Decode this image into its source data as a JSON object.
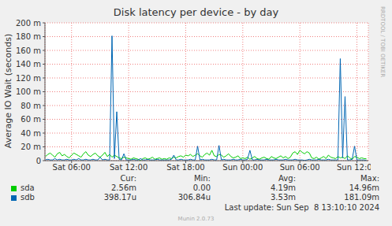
{
  "chart_data": {
    "type": "line",
    "title": "Disk latency per device - by day",
    "y_label": "Average IO Wait (seconds)",
    "side_text": "RRDTOOL / TOBI OETIKER",
    "footer": "Last update: Sun Sep  8 13:10:10 2024",
    "credit": "Munin 2.0.73",
    "stats_headers": [
      "Cur:",
      "Min:",
      "Avg:",
      "Max:"
    ],
    "grid": true,
    "xlim": [
      3.2,
      37.2
    ],
    "xticks": [
      {
        "value": 6,
        "label": "Sat 06:00"
      },
      {
        "value": 12,
        "label": "Sat 12:00"
      },
      {
        "value": 18,
        "label": "Sat 18:00"
      },
      {
        "value": 24,
        "label": "Sun 00:00"
      },
      {
        "value": 30,
        "label": "Sun 06:00"
      },
      {
        "value": 36,
        "label": "Sun 12:00"
      }
    ],
    "ylim": [
      0,
      0.2
    ],
    "yticks": [
      0,
      {
        "value": 0.02,
        "label": "20 m"
      },
      {
        "value": 0.04,
        "label": "40 m"
      },
      {
        "value": 0.06,
        "label": "60 m"
      },
      {
        "value": 0.08,
        "label": "80 m"
      },
      {
        "value": 0.1,
        "label": "100 m"
      },
      {
        "value": 0.12,
        "label": "120 m"
      },
      {
        "value": 0.14,
        "label": "140 m"
      },
      {
        "value": 0.16,
        "label": "160 m"
      },
      {
        "value": 0.18,
        "label": "180 m"
      },
      {
        "value": 0.2,
        "label": "200 m"
      }
    ],
    "x": [
      3.25,
      3.5,
      3.75,
      4,
      4.25,
      4.5,
      4.75,
      5,
      5.25,
      5.5,
      5.75,
      6,
      6.25,
      6.5,
      6.75,
      7,
      7.25,
      7.5,
      7.75,
      8,
      8.25,
      8.5,
      8.75,
      9,
      9.25,
      9.5,
      9.75,
      10,
      10.25,
      10.5,
      10.75,
      11,
      11.25,
      11.5,
      11.75,
      12,
      12.25,
      12.5,
      12.75,
      13,
      13.25,
      13.5,
      13.75,
      14,
      14.25,
      14.5,
      14.75,
      15,
      15.25,
      15.5,
      15.75,
      16,
      16.25,
      16.5,
      16.75,
      17,
      17.25,
      17.5,
      17.75,
      18,
      18.25,
      18.5,
      18.75,
      19,
      19.25,
      19.5,
      19.75,
      20,
      20.25,
      20.5,
      20.75,
      21,
      21.25,
      21.5,
      21.75,
      22,
      22.25,
      22.5,
      22.75,
      23,
      23.25,
      23.5,
      23.75,
      24,
      24.25,
      24.5,
      24.75,
      25,
      25.25,
      25.5,
      25.75,
      26,
      26.25,
      26.5,
      26.75,
      27,
      27.25,
      27.5,
      27.75,
      28,
      28.25,
      28.5,
      28.75,
      29,
      29.25,
      29.5,
      29.75,
      30,
      30.25,
      30.5,
      30.75,
      31,
      31.25,
      31.5,
      31.75,
      32,
      32.25,
      32.5,
      32.75,
      33,
      33.25,
      33.5,
      33.75,
      34,
      34.25,
      34.5,
      34.75,
      35,
      35.25,
      35.5,
      35.75,
      36,
      36.25,
      36.5,
      36.75,
      37
    ],
    "series": [
      {
        "name": "sda",
        "color": "#00cc00",
        "stats": [
          "2.56m",
          "0.00",
          "4.19m",
          "14.96m"
        ],
        "values": [
          0.006,
          0.009,
          0.011,
          0.008,
          0.005,
          0.01,
          0.012,
          0.007,
          0.009,
          0.006,
          0.004,
          0.008,
          0.011,
          0.009,
          0.007,
          0.005,
          0.01,
          0.013,
          0.008,
          0.006,
          0.009,
          0.011,
          0.007,
          0.005,
          0.008,
          0.012,
          0.006,
          0.009,
          0.005,
          0.008,
          0.006,
          0.004,
          0.003,
          0.005,
          0.004,
          0.003,
          0.002,
          0.004,
          0.003,
          0.002,
          0,
          0.003,
          0.004,
          0.002,
          0.003,
          0.005,
          0.002,
          0.003,
          0.004,
          0.002,
          0.003,
          0.002,
          0.004,
          0.003,
          0.005,
          0.004,
          0.006,
          0.007,
          0.005,
          0.008,
          0.007,
          0.009,
          0.006,
          0.008,
          0.01,
          0.007,
          0.005,
          0.009,
          0.011,
          0.008,
          0.015,
          0.007,
          0.006,
          0.009,
          0.008,
          0.005,
          0.007,
          0.01,
          0.006,
          0.004,
          0.005,
          0.007,
          0.003,
          0.004,
          0.003,
          0.005,
          0.002,
          0.004,
          0.006,
          0.003,
          0.002,
          0.004,
          0.005,
          0.003,
          0.002,
          0.006,
          0.004,
          0.003,
          0.005,
          0.007,
          0.004,
          0.006,
          0.003,
          0.005,
          0.011,
          0.013,
          0.009,
          0.01496,
          0.012,
          0.01,
          0.013,
          0.011,
          0.004,
          0.003,
          0.005,
          0.002,
          0.004,
          0.006,
          0.003,
          0.008,
          0.005,
          0.004,
          0.003,
          0.006,
          0.004,
          0.005,
          0.003,
          0.007,
          0.004,
          0.002,
          0.006,
          0.005,
          0.003,
          0.004,
          0.003,
          0.00256
        ]
      },
      {
        "name": "sdb",
        "color": "#0066b3",
        "stats": [
          "398.17u",
          "306.84u",
          "3.53m",
          "181.09m"
        ],
        "values": [
          0.001,
          0.002,
          0.001,
          0.001,
          0.003,
          0.001,
          0.002,
          0.001,
          0.001,
          0.002,
          0.001,
          0.001,
          0.002,
          0.001,
          0.003,
          0.001,
          0.001,
          0.002,
          0.001,
          0.001,
          0.002,
          0.001,
          0.001,
          0.005,
          0.001,
          0.002,
          0.001,
          0.001,
          0.18109,
          0.003,
          0.071,
          0.002,
          0.001,
          0.01,
          0.001,
          0.001,
          0.001,
          0.002,
          0.001,
          0.001,
          0.003,
          0.001,
          0.001,
          0.002,
          0.001,
          0.001,
          0.001,
          0.002,
          0.001,
          0.001,
          0.001,
          0.001,
          0.001,
          0.002,
          0.008,
          0.001,
          0.001,
          0.002,
          0.001,
          0.001,
          0.001,
          0.002,
          0.001,
          0.001,
          0.021,
          0.001,
          0.002,
          0.001,
          0.001,
          0.001,
          0.002,
          0.001,
          0.001,
          0.022,
          0.001,
          0.002,
          0.001,
          0.001,
          0.001,
          0.002,
          0.001,
          0.001,
          0.002,
          0.001,
          0.001,
          0.002,
          0.015,
          0.001,
          0.001,
          0.002,
          0.001,
          0.001,
          0.001,
          0.002,
          0.001,
          0.001,
          0.001,
          0.002,
          0.001,
          0.001,
          0.001,
          0.002,
          0.001,
          0.001,
          0.001,
          0.002,
          0.001,
          0.001,
          0.001,
          0.00030684,
          0.001,
          0.002,
          0.001,
          0.001,
          0.001,
          0.002,
          0.001,
          0.001,
          0.001,
          0.002,
          0.001,
          0.001,
          0.001,
          0.001,
          0.148,
          0.004,
          0.093,
          0.001,
          0.001,
          0.002,
          0.021,
          0.001,
          0.001,
          0.001,
          0.001,
          0.00039817
        ]
      }
    ]
  }
}
